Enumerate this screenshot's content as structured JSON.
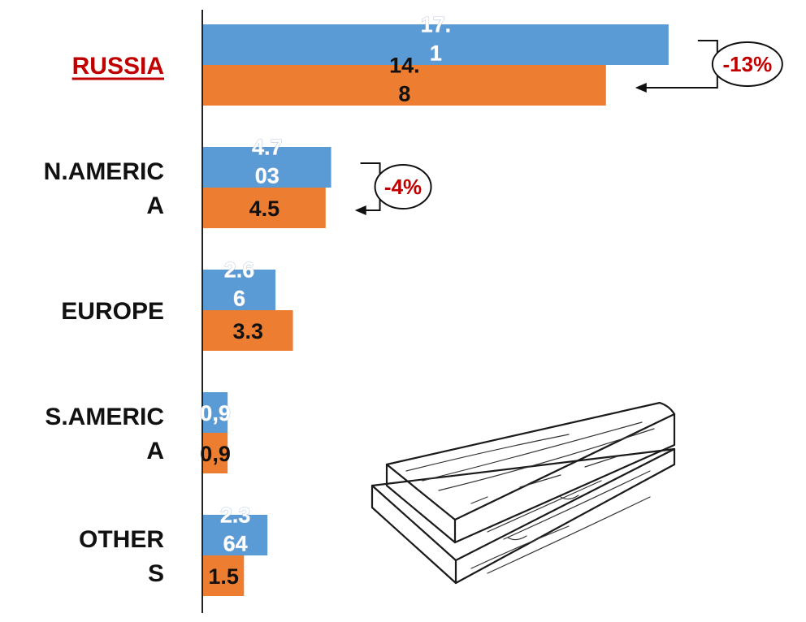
{
  "chart_data": {
    "type": "bar",
    "orientation": "horizontal",
    "categories": [
      "RUSSIA",
      "N.AMERICA",
      "EUROPE",
      "S.AMERICA",
      "OTHERS"
    ],
    "category_label_lines": [
      [
        "RUSSIA"
      ],
      [
        "N.AMERIC",
        "A"
      ],
      [
        "EUROPE"
      ],
      [
        "S.AMERIC",
        "A"
      ],
      [
        "OTHER",
        "S"
      ]
    ],
    "highlighted_category": "RUSSIA",
    "series": [
      {
        "color": "#5b9bd5",
        "values": [
          17.1,
          4.703,
          2.66,
          0.9,
          2.364
        ],
        "labels": [
          [
            "17.",
            "1"
          ],
          [
            "4.7",
            "03"
          ],
          [
            "2.6",
            "6"
          ],
          [
            "0,9"
          ],
          [
            "2.3",
            "64"
          ]
        ]
      },
      {
        "color": "#ed7d31",
        "values": [
          14.8,
          4.5,
          3.3,
          0.9,
          1.5
        ],
        "labels": [
          [
            "14.",
            "8"
          ],
          [
            "4.5"
          ],
          [
            "3.3"
          ],
          [
            "0,9"
          ],
          [
            "1.5"
          ]
        ]
      }
    ],
    "xlim": [
      0,
      20
    ],
    "annotations": [
      {
        "category": "RUSSIA",
        "text": "-13%",
        "color": "#c00000"
      },
      {
        "category": "N.AMERICA",
        "text": "-4%",
        "color": "#c00000"
      }
    ],
    "grid": false,
    "legend": "none",
    "illustration": "wooden-planks-sketch"
  }
}
